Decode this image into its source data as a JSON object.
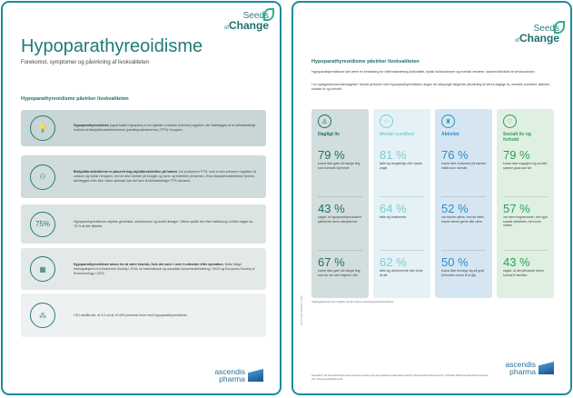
{
  "brand": {
    "seeds_top": "Seeds",
    "seeds_of": "of",
    "seeds_change": "Change",
    "ascendis_1": "ascendis",
    "ascendis_2": "pharma"
  },
  "page1": {
    "title": "Hypoparathyreoidisme",
    "subtitle": "Forekomst, symptomer og påvirkning af livskvaliteten",
    "section": "Hypoparathyreoidisme påvirker livskvaliteten",
    "boxes": [
      {
        "icon": "lightbulb-icon",
        "bold": "Hypoparathyreoidisme",
        "text": " (også kaldet hypopara) er en sjælden endokrin (hormon) sygdom, der fastlægges af et utilstrækkeligt indhold af biskjoldbruskkirtelhormon (parathyroideahormon, PTH) i kroppen.",
        "bg": "#c8d6d5"
      },
      {
        "icon": "thyroid-icon",
        "bold": "Biskjoldbruskkirtlerne er placeret bag skjoldbruskkirtlen på halsen.",
        "text": " De producerer PTH, som er den primære regulator af calcium og fosfat i kroppen, ved at virke direkte på knogler og nyrer og indirekte på tarmen. Hvis biskjoldbruskkirtlerne fjernes, ødelægges eller ikke virker optimalt, kan det føre til utilstrækkelige PTH-niveauer.",
        "bg": "#d0dcdb"
      },
      {
        "icon": "75%",
        "bold": "",
        "text": "Hypoparathyreoidisme skyldes genetiske, autoimmune og andre årsager. Oftest opstår det efter halskirurgi, hvilket udgør ca. 75 % af alle tilfælde.",
        "bg": "#dbe4e3"
      },
      {
        "icon": "calendar-icon",
        "bold": "Hypoparathyreoidisme anses for at være kronisk, hvis det varer i over 6 måneder efter operation.",
        "text": " Dette ifølge retningslinjerne fra Endocrine Society i 2016, en international og canadisk konsensuserklæring i 2019 og European Society of Endocrinology i 2022.",
        "bg": "#e3e9e9"
      },
      {
        "icon": "eu-people-icon",
        "bold": "",
        "text": "I EU anslås det, at 3,2 ud af 10.000 personer lever med hypoparathyreoidisme.",
        "bg": "#eef1f1"
      }
    ]
  },
  "page2": {
    "heading": "Hypoparathyreoidisme påvirker livskvaliteten",
    "p1": "Hypoparathyreoidisme kan være en belastning for helbredsmæssig livskvalitet, fysisk funktionsevne og mentalt velvære, uanset indholdet af serumcalcium.",
    "p2": "I en spørgeskemaundersøgelse* blandt personer med hypoparathyreoidisme angav de adspurgte følgende påvirkning af deres daglige liv, mentale sundhed, aktivitet, sociale liv og forhold.",
    "columns": [
      {
        "title": "Dagligt liv",
        "icon": "person-at-desk-icon",
        "color": "#1f6e6e",
        "bg": "#d2dedd",
        "stats": [
          {
            "pct": "79 %",
            "text": "kunne ikke gøre så mange ting som normalt i hjemmet"
          },
          {
            "pct": "43 %",
            "text": "sagde, at hypoparathyreoidisme påvirkede deres arbejdsevne"
          },
          {
            "pct": "67 %",
            "text": "kunne ikke gøre så mange ting, som de var vant til/gerne ville"
          }
        ]
      },
      {
        "title": "Mental sundhed",
        "icon": "head-icon",
        "color": "#7ccbd8",
        "bg": "#e4f2f5",
        "stats": [
          {
            "pct": "81 %",
            "text": "følte sig ængstelige eller havde angst"
          },
          {
            "pct": "64 %",
            "text": "følte sig frustrerede"
          },
          {
            "pct": "62 %",
            "text": "følte sig deprimerede eller kede af det"
          }
        ]
      },
      {
        "title": "Aktivitet",
        "icon": "bottle-icon",
        "color": "#2b8fc2",
        "bg": "#d5e6f2",
        "stats": [
          {
            "pct": "76 %",
            "text": "kunne ikke motionere på samme måde som normalt"
          },
          {
            "pct": "52 %",
            "text": "var mindre aktive, end de ellers havde været/ gerne ville være"
          },
          {
            "pct": "50 %",
            "text": "kunne ikke bevæge sig så godt (herunder evnen til at gå)"
          }
        ]
      },
      {
        "title": "Socialt liv og forhold",
        "icon": "heart-icon",
        "color": "#2e9e5a",
        "bg": "#dff0e2",
        "stats": [
          {
            "pct": "79 %",
            "text": "kunne ikke engagere sig socialt i samme grad som før"
          },
          {
            "pct": "57 %",
            "text": "var mere begrænsede i den type sociale aktiviteter, de kunne udføre"
          },
          {
            "pct": "43 %",
            "text": "sagde, at det påvirkede deres forhold til familien"
          }
        ]
      }
    ],
    "footnote": "*Spørgeskemaet blev udfyldt med 40 voksne med hypoparathyreoidisme.",
    "side_code": "DK-HP-0000 10/2023 © 2023",
    "legal": "Ascendis®, the Ascendis Pharma logo and the company logo are registered trademarks owned by the Ascendis Pharma Group. ©October 2023 Ascendis Pharma Europe A/S. www.ascendispharma.dk",
    "code": "pharma"
  }
}
